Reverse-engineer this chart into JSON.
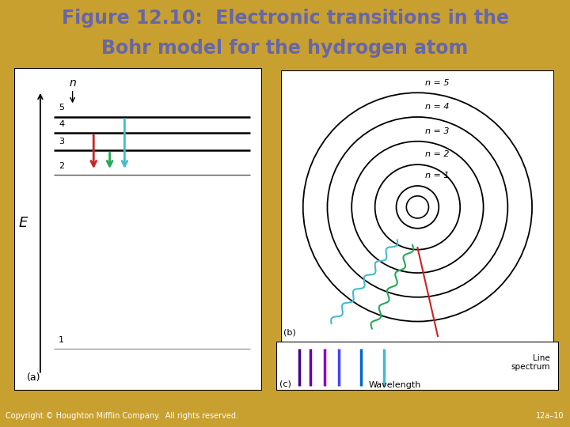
{
  "title_line1": "Figure 12.10:  Electronic transitions in the",
  "title_line2": "Bohr model for the hydrogen atom",
  "title_color": "#6666aa",
  "title_bg": "#ccc8a8",
  "border_color": "#c8a030",
  "panel_bg": "#8899bb",
  "footer_text": "Copyright © Houghton Mifflin Company.  All rights reserved.",
  "footer_right": "12a–10",
  "footer_bg": "#c8a030",
  "arrow_colors": [
    "#cc2222",
    "#22aa55",
    "#44bbcc"
  ],
  "circle_radii": [
    0.42,
    0.84,
    1.3,
    1.78,
    2.26
  ],
  "n_labels": [
    "n = 1",
    "n = 2",
    "n = 3",
    "n = 4",
    "n = 5"
  ],
  "spec_lines": [
    [
      0.08,
      "#440088"
    ],
    [
      0.12,
      "#6600aa"
    ],
    [
      0.17,
      "#8800cc"
    ],
    [
      0.22,
      "#4444ff"
    ],
    [
      0.3,
      "#0066cc"
    ],
    [
      0.38,
      "#44bbcc"
    ]
  ]
}
